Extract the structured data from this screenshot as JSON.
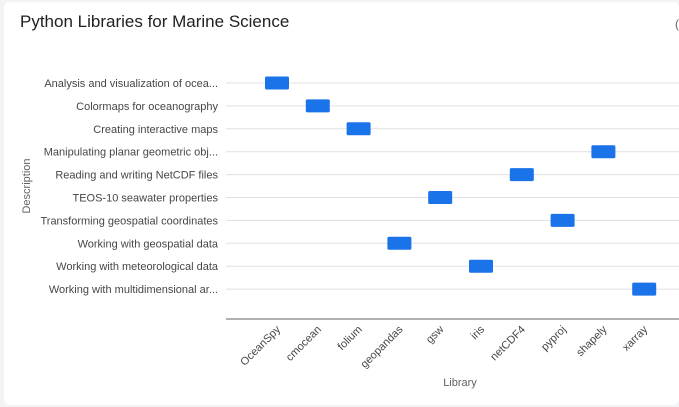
{
  "title": "Python Libraries for Marine Science",
  "chart_data": {
    "type": "scatter",
    "marker": "rectangle",
    "title": "Python Libraries for Marine Science",
    "xlabel": "Library",
    "ylabel": "Description",
    "x_categories": [
      "OceanSpy",
      "cmocean",
      "folium",
      "geopandas",
      "gsw",
      "iris",
      "netCDF4",
      "pyproj",
      "shapely",
      "xarray"
    ],
    "y_categories": [
      "Analysis and visualization of ocea...",
      "Colormaps for oceanography",
      "Creating interactive maps",
      "Manipulating planar geometric obj...",
      "Reading and writing NetCDF files",
      "TEOS-10 seawater properties",
      "Transforming geospatial coordinates",
      "Working with geospatial data",
      "Working with meteorological data",
      "Working with multidimensional ar..."
    ],
    "points": [
      {
        "x": "OceanSpy",
        "y": "Analysis and visualization of ocea..."
      },
      {
        "x": "cmocean",
        "y": "Colormaps for oceanography"
      },
      {
        "x": "folium",
        "y": "Creating interactive maps"
      },
      {
        "x": "shapely",
        "y": "Manipulating planar geometric obj..."
      },
      {
        "x": "netCDF4",
        "y": "Reading and writing NetCDF files"
      },
      {
        "x": "gsw",
        "y": "TEOS-10 seawater properties"
      },
      {
        "x": "pyproj",
        "y": "Transforming geospatial coordinates"
      },
      {
        "x": "geopandas",
        "y": "Working with geospatial data"
      },
      {
        "x": "iris",
        "y": "Working with meteorological data"
      },
      {
        "x": "xarray",
        "y": "Working with multidimensional ar..."
      }
    ],
    "marker_color": "#1a73e8",
    "grid": true
  }
}
